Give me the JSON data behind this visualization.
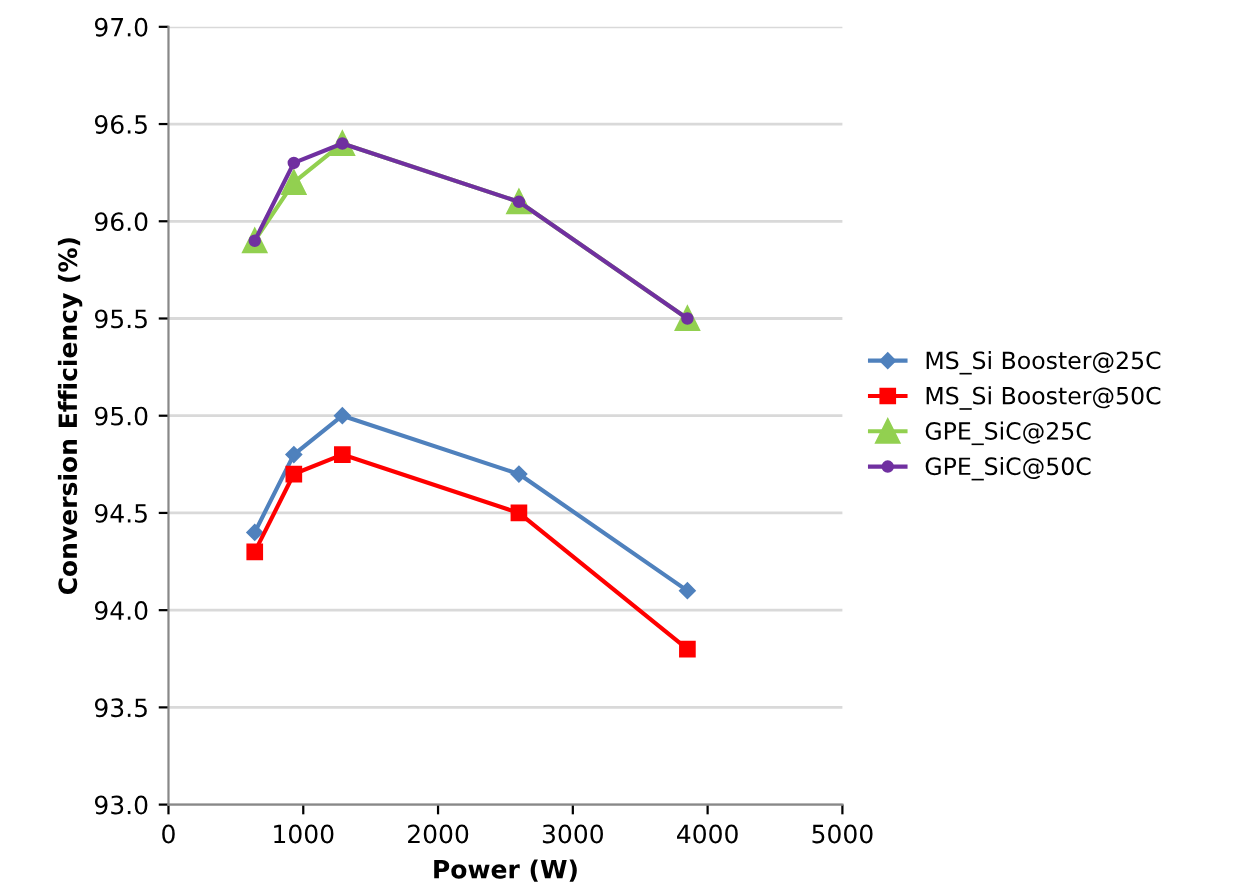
{
  "chart_data": {
    "type": "line",
    "xlabel": "Power (W)",
    "ylabel": "Conversion Efficiency (%)",
    "xlim": [
      0,
      5000
    ],
    "xticks": [
      0,
      1000,
      2000,
      3000,
      4000,
      5000
    ],
    "ylim": [
      93.0,
      97.0
    ],
    "yticks": [
      {
        "value": 93.0,
        "label": "93.0"
      },
      {
        "value": 93.5,
        "label": "93.5"
      },
      {
        "value": 94.0,
        "label": "94.0"
      },
      {
        "value": 94.5,
        "label": "94.5"
      },
      {
        "value": 95.0,
        "label": "95.0"
      },
      {
        "value": 95.5,
        "label": "95.5"
      },
      {
        "value": 96.0,
        "label": "96.0"
      },
      {
        "value": 96.5,
        "label": "96.5"
      },
      {
        "value": 97.0,
        "label": "97.0"
      }
    ],
    "x": [
      640,
      930,
      1290,
      2600,
      3850
    ],
    "grid": "y",
    "legend": "right",
    "line_style": "solid",
    "series": [
      {
        "name": "MS_Si Booster@25C",
        "color": "#4f81bd",
        "marker": "diamond",
        "values": [
          94.4,
          94.8,
          95.0,
          94.7,
          94.1
        ]
      },
      {
        "name": "MS_Si Booster@50C",
        "color": "#ff0000",
        "marker": "square",
        "values": [
          94.3,
          94.7,
          94.8,
          94.5,
          93.8
        ]
      },
      {
        "name": "GPE_SiC@25C",
        "color": "#92d050",
        "marker": "triangle",
        "values": [
          95.9,
          96.2,
          96.4,
          96.1,
          95.5
        ]
      },
      {
        "name": "GPE_SiC@50C",
        "color": "#7030a0",
        "marker": "circle",
        "values": [
          95.9,
          96.3,
          96.4,
          96.1,
          95.5
        ]
      }
    ]
  }
}
